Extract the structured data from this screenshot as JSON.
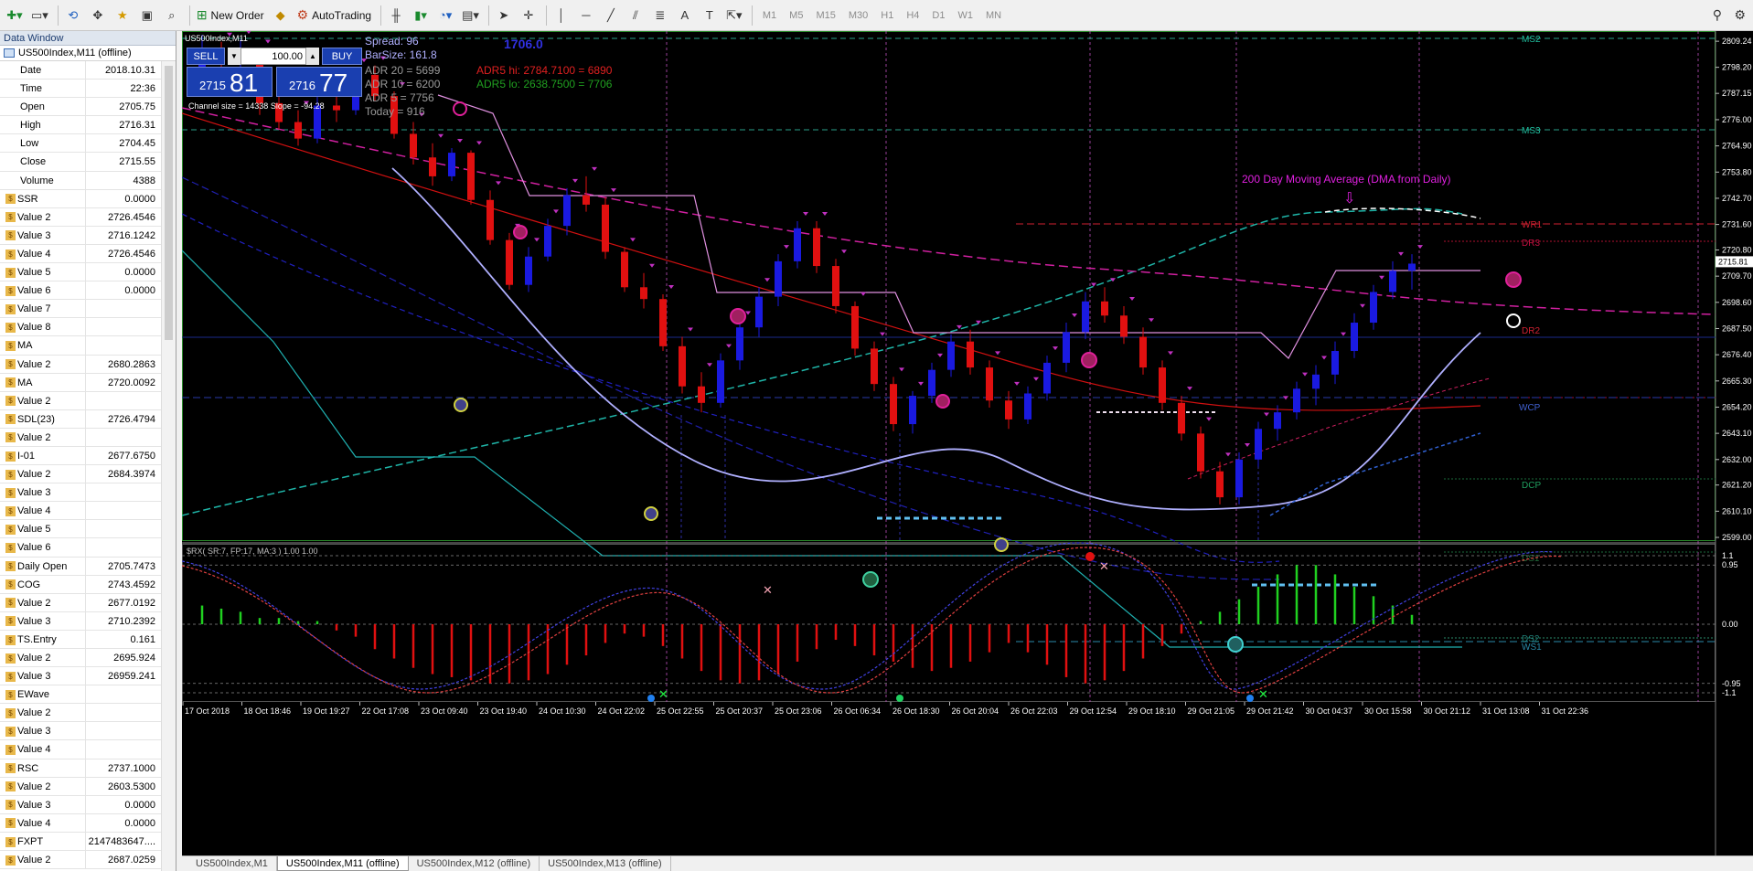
{
  "toolbar": {
    "new_order": "New Order",
    "auto_trading": "AutoTrading",
    "timeframes": [
      "M1",
      "M5",
      "M15",
      "M30",
      "H1",
      "H4",
      "D1",
      "W1",
      "MN"
    ]
  },
  "data_window": {
    "title": "Data Window",
    "symbol": "US500Index,M11 (offline)",
    "rows": [
      {
        "name": "Date",
        "value": "2018.10.31",
        "ind": false
      },
      {
        "name": "Time",
        "value": "22:36",
        "ind": false
      },
      {
        "name": "Open",
        "value": "2705.75",
        "ind": false
      },
      {
        "name": "High",
        "value": "2716.31",
        "ind": false
      },
      {
        "name": "Low",
        "value": "2704.45",
        "ind": false
      },
      {
        "name": "Close",
        "value": "2715.55",
        "ind": false
      },
      {
        "name": "Volume",
        "value": "4388",
        "ind": false
      },
      {
        "name": "SSR",
        "value": "0.0000",
        "ind": true
      },
      {
        "name": "Value 2",
        "value": "2726.4546",
        "ind": true
      },
      {
        "name": "Value 3",
        "value": "2716.1242",
        "ind": true
      },
      {
        "name": "Value 4",
        "value": "2726.4546",
        "ind": true
      },
      {
        "name": "Value 5",
        "value": "0.0000",
        "ind": true
      },
      {
        "name": "Value 6",
        "value": "0.0000",
        "ind": true
      },
      {
        "name": "Value 7",
        "value": "",
        "ind": true
      },
      {
        "name": "Value 8",
        "value": "",
        "ind": true
      },
      {
        "name": "MA",
        "value": "",
        "ind": true
      },
      {
        "name": "Value 2",
        "value": "2680.2863",
        "ind": true
      },
      {
        "name": "MA",
        "value": "2720.0092",
        "ind": true
      },
      {
        "name": "Value 2",
        "value": "",
        "ind": true
      },
      {
        "name": "SDL(23)",
        "value": "2726.4794",
        "ind": true
      },
      {
        "name": "Value 2",
        "value": "",
        "ind": true
      },
      {
        "name": "I-01",
        "value": "2677.6750",
        "ind": true
      },
      {
        "name": "Value 2",
        "value": "2684.3974",
        "ind": true
      },
      {
        "name": "Value 3",
        "value": "",
        "ind": true
      },
      {
        "name": "Value 4",
        "value": "",
        "ind": true
      },
      {
        "name": "Value 5",
        "value": "",
        "ind": true
      },
      {
        "name": "Value 6",
        "value": "",
        "ind": true
      },
      {
        "name": "Daily Open",
        "value": "2705.7473",
        "ind": true
      },
      {
        "name": "COG",
        "value": "2743.4592",
        "ind": true
      },
      {
        "name": "Value 2",
        "value": "2677.0192",
        "ind": true
      },
      {
        "name": "Value 3",
        "value": "2710.2392",
        "ind": true
      },
      {
        "name": "TS.Entry",
        "value": "0.161",
        "ind": true
      },
      {
        "name": "Value 2",
        "value": "2695.924",
        "ind": true
      },
      {
        "name": "Value 3",
        "value": "26959.241",
        "ind": true
      },
      {
        "name": "EWave",
        "value": "",
        "ind": true
      },
      {
        "name": "Value 2",
        "value": "",
        "ind": true
      },
      {
        "name": "Value 3",
        "value": "",
        "ind": true
      },
      {
        "name": "Value 4",
        "value": "",
        "ind": true
      },
      {
        "name": "RSC",
        "value": "2737.1000",
        "ind": true
      },
      {
        "name": "Value 2",
        "value": "2603.5300",
        "ind": true
      },
      {
        "name": "Value 3",
        "value": "0.0000",
        "ind": true
      },
      {
        "name": "Value 4",
        "value": "0.0000",
        "ind": true
      },
      {
        "name": "FXPT",
        "value": "2147483647....",
        "ind": true
      },
      {
        "name": "Value 2",
        "value": "2687.0259",
        "ind": true
      }
    ]
  },
  "chart": {
    "window_title": "US500Index,M11",
    "spread": "Spread: 96",
    "barsize": "BarSize: 161.8",
    "countdown": "1706.0",
    "adr20": "ADR 20 = 5699",
    "adr10": "ADR 10 = 6200",
    "adr5": "ADR  5  = 7756",
    "today": "Today     = 916",
    "adr_hi": "ADR5 hi: 2784.7100 = 6890",
    "adr_lo": "ADR5 lo: 2638.7500 = 7706",
    "channel": "Channel size = 14338  Slope = -94.28",
    "dma_label": "200 Day Moving Average (DMA from Daily)",
    "indicator_label": "$RX( SR:7, FP:17, MA:3 ) 1.00 1.00",
    "pivot_labels": [
      "MS2",
      "MS3",
      "WR1",
      "DR3",
      "DR2",
      "WCP",
      "DCP",
      "DS1",
      "DS2",
      "WS1"
    ],
    "price_ticks": [
      "2809.24",
      "2798.20",
      "2787.15",
      "2776.00",
      "2764.90",
      "2753.80",
      "2742.70",
      "2731.60",
      "2720.80",
      "2709.70",
      "2698.60",
      "2687.50",
      "2676.40",
      "2665.30",
      "2654.20",
      "2643.10",
      "2632.00",
      "2621.20",
      "2610.10",
      "2599.00"
    ],
    "current_price": "2715.81",
    "osc_ticks": [
      "1.1",
      "0.95",
      "0.00",
      "-0.95",
      "-1.1"
    ],
    "time_labels": [
      "17 Oct 2018",
      "18 Oct 18:46",
      "19 Oct 19:27",
      "22 Oct 17:08",
      "23 Oct 09:40",
      "23 Oct 19:40",
      "24 Oct 10:30",
      "24 Oct 22:02",
      "25 Oct 22:55",
      "25 Oct 20:37",
      "25 Oct 23:06",
      "26 Oct 06:34",
      "26 Oct 18:30",
      "26 Oct 20:04",
      "26 Oct 22:03",
      "29 Oct 12:54",
      "29 Oct 18:10",
      "29 Oct 21:05",
      "29 Oct 21:42",
      "30 Oct 04:37",
      "30 Oct 15:58",
      "30 Oct 21:12",
      "31 Oct 13:08",
      "31 Oct 22:36"
    ]
  },
  "trade_panel": {
    "sell": "SELL",
    "buy": "BUY",
    "lot": "100.00",
    "bid_small": "2715",
    "bid_big": "81",
    "ask_small": "2716",
    "ask_big": "77"
  },
  "tabs": [
    "US500Index,M1",
    "US500Index,M11 (offline)",
    "US500Index,M12 (offline)",
    "US500Index,M13 (offline)"
  ],
  "candles": [
    [
      2796,
      2812,
      2790,
      2805
    ],
    [
      2803,
      2809,
      2797,
      2800
    ],
    [
      2800,
      2810,
      2797,
      2804
    ],
    [
      2804,
      2806,
      2778,
      2783
    ],
    [
      2783,
      2788,
      2772,
      2775
    ],
    [
      2775,
      2780,
      2765,
      2768
    ],
    [
      2768,
      2791,
      2766,
      2782
    ],
    [
      2782,
      2786,
      2775,
      2780
    ],
    [
      2780,
      2798,
      2778,
      2795
    ],
    [
      2795,
      2799,
      2784,
      2786
    ],
    [
      2786,
      2788,
      2768,
      2770
    ],
    [
      2770,
      2775,
      2757,
      2760
    ],
    [
      2760,
      2766,
      2748,
      2752
    ],
    [
      2752,
      2764,
      2750,
      2762
    ],
    [
      2762,
      2763,
      2740,
      2742
    ],
    [
      2742,
      2746,
      2723,
      2725
    ],
    [
      2725,
      2728,
      2704,
      2706
    ],
    [
      2706,
      2722,
      2703,
      2718
    ],
    [
      2718,
      2734,
      2716,
      2731
    ],
    [
      2731,
      2747,
      2727,
      2744
    ],
    [
      2744,
      2752,
      2737,
      2740
    ],
    [
      2740,
      2743,
      2717,
      2720
    ],
    [
      2720,
      2722,
      2703,
      2705
    ],
    [
      2705,
      2711,
      2696,
      2700
    ],
    [
      2700,
      2702,
      2678,
      2680
    ],
    [
      2680,
      2684,
      2660,
      2663
    ],
    [
      2663,
      2669,
      2652,
      2656
    ],
    [
      2656,
      2677,
      2654,
      2674
    ],
    [
      2674,
      2691,
      2670,
      2688
    ],
    [
      2688,
      2705,
      2684,
      2701
    ],
    [
      2701,
      2719,
      2697,
      2716
    ],
    [
      2716,
      2733,
      2713,
      2730
    ],
    [
      2730,
      2733,
      2711,
      2714
    ],
    [
      2714,
      2717,
      2694,
      2697
    ],
    [
      2697,
      2699,
      2676,
      2679
    ],
    [
      2679,
      2682,
      2661,
      2664
    ],
    [
      2664,
      2667,
      2644,
      2647
    ],
    [
      2647,
      2661,
      2643,
      2659
    ],
    [
      2659,
      2673,
      2656,
      2670
    ],
    [
      2670,
      2685,
      2667,
      2682
    ],
    [
      2682,
      2687,
      2668,
      2671
    ],
    [
      2671,
      2674,
      2654,
      2657
    ],
    [
      2657,
      2661,
      2645,
      2649
    ],
    [
      2649,
      2663,
      2647,
      2660
    ],
    [
      2660,
      2676,
      2657,
      2673
    ],
    [
      2673,
      2690,
      2669,
      2686
    ],
    [
      2686,
      2703,
      2683,
      2699
    ],
    [
      2699,
      2705,
      2690,
      2693
    ],
    [
      2693,
      2697,
      2681,
      2684
    ],
    [
      2684,
      2688,
      2668,
      2671
    ],
    [
      2671,
      2674,
      2653,
      2656
    ],
    [
      2656,
      2659,
      2640,
      2643
    ],
    [
      2643,
      2646,
      2624,
      2627
    ],
    [
      2627,
      2631,
      2613,
      2616
    ],
    [
      2616,
      2635,
      2613,
      2632
    ],
    [
      2632,
      2648,
      2629,
      2645
    ],
    [
      2645,
      2655,
      2640,
      2652
    ],
    [
      2652,
      2665,
      2649,
      2662
    ],
    [
      2662,
      2672,
      2655,
      2668
    ],
    [
      2668,
      2682,
      2664,
      2678
    ],
    [
      2678,
      2694,
      2675,
      2690
    ],
    [
      2690,
      2706,
      2687,
      2703
    ],
    [
      2703,
      2716,
      2700,
      2712
    ],
    [
      2712,
      2719,
      2704,
      2715
    ]
  ],
  "osc_bars": [
    0.3,
    0.25,
    0.2,
    0.1,
    0.1,
    0.05,
    0.05,
    -0.1,
    -0.2,
    -0.4,
    -0.55,
    -0.7,
    -0.8,
    -0.85,
    -0.9,
    -0.95,
    -0.95,
    -0.9,
    -0.8,
    -0.65,
    -0.5,
    -0.3,
    -0.15,
    -0.2,
    -0.35,
    -0.55,
    -0.75,
    -0.9,
    -0.95,
    -0.9,
    -0.8,
    -0.6,
    -0.4,
    -0.25,
    -0.35,
    -0.5,
    -0.6,
    -0.7,
    -0.75,
    -0.7,
    -0.6,
    -0.45,
    -0.3,
    -0.45,
    -0.65,
    -0.85,
    -0.95,
    -0.9,
    -0.75,
    -0.55,
    -0.35,
    -0.15,
    0.05,
    0.2,
    0.4,
    0.6,
    0.8,
    0.95,
    0.95,
    0.8,
    0.6,
    0.45,
    0.3,
    0.15
  ]
}
